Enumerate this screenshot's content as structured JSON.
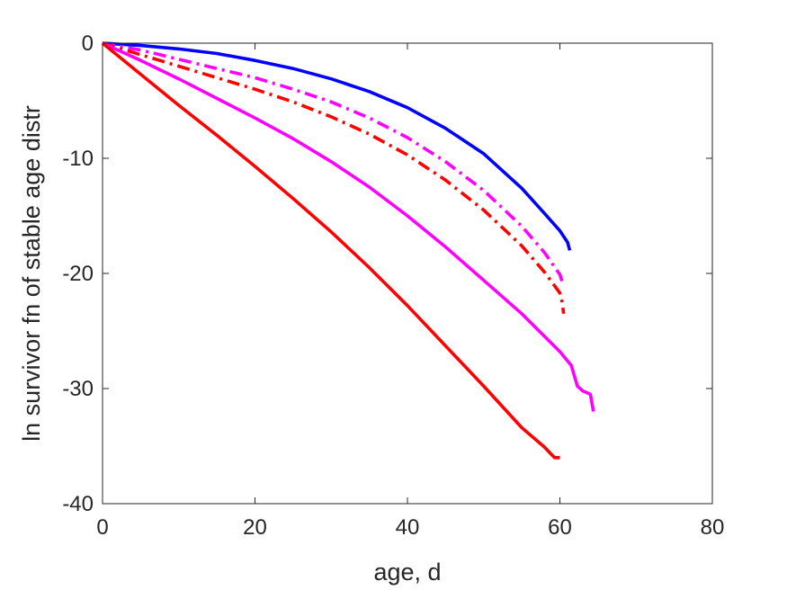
{
  "chart_data": {
    "type": "line",
    "title": "",
    "xlabel": "age, d",
    "ylabel": "ln survivor fn of stable age distr",
    "xlim": [
      0,
      80
    ],
    "ylim": [
      -40,
      0
    ],
    "xticks": [
      0,
      20,
      40,
      60,
      80
    ],
    "yticks": [
      0,
      -10,
      -20,
      -30,
      -40
    ],
    "xtick_labels": [
      "0",
      "20",
      "40",
      "60",
      "80"
    ],
    "ytick_labels": [
      "0",
      "-10",
      "-20",
      "-30",
      "-40"
    ],
    "grid": false,
    "legend": "none",
    "series": [
      {
        "color": "#0000ff",
        "style": "solid",
        "x": [
          0,
          5,
          10,
          15,
          20,
          25,
          30,
          35,
          40,
          45,
          50,
          55,
          58,
          60,
          61,
          61.3
        ],
        "y": [
          0,
          -0.2,
          -0.5,
          -0.9,
          -1.5,
          -2.2,
          -3.1,
          -4.2,
          -5.6,
          -7.4,
          -9.6,
          -12.6,
          -14.8,
          -16.3,
          -17.3,
          -18.0
        ]
      },
      {
        "color": "#ff00ff",
        "style": "dashdot",
        "x": [
          0,
          5,
          10,
          15,
          20,
          25,
          30,
          35,
          40,
          45,
          50,
          55,
          58,
          60,
          60.5
        ],
        "y": [
          0,
          -0.6,
          -1.4,
          -2.2,
          -3.0,
          -4.0,
          -5.1,
          -6.5,
          -8.2,
          -10.3,
          -12.8,
          -15.9,
          -18.2,
          -20.1,
          -21.1
        ]
      },
      {
        "color": "#ff0000",
        "style": "dashdot",
        "x": [
          0,
          5,
          10,
          15,
          20,
          25,
          30,
          35,
          40,
          45,
          50,
          55,
          58,
          60,
          60.3,
          60.5
        ],
        "y": [
          0,
          -1.0,
          -2.0,
          -3.0,
          -4.0,
          -5.1,
          -6.4,
          -7.9,
          -9.7,
          -11.9,
          -14.5,
          -17.6,
          -19.9,
          -21.7,
          -22.5,
          -23.5
        ]
      },
      {
        "color": "#ff00ff",
        "style": "solid",
        "x": [
          0,
          5,
          10,
          15,
          20,
          25,
          30,
          35,
          40,
          45,
          50,
          55,
          60,
          61.5,
          62.3,
          63,
          64,
          64.4
        ],
        "y": [
          0,
          -1.5,
          -3.1,
          -4.8,
          -6.5,
          -8.3,
          -10.3,
          -12.5,
          -15.0,
          -17.7,
          -20.6,
          -23.5,
          -26.8,
          -28.0,
          -29.8,
          -30.2,
          -30.5,
          -32.0
        ]
      },
      {
        "color": "#ff0000",
        "style": "solid",
        "x": [
          0,
          5,
          10,
          15,
          20,
          25,
          30,
          35,
          40,
          45,
          50,
          55,
          58,
          59,
          59.3,
          60
        ],
        "y": [
          0,
          -2.7,
          -5.4,
          -8.0,
          -10.7,
          -13.5,
          -16.4,
          -19.5,
          -22.8,
          -26.3,
          -29.8,
          -33.4,
          -35.1,
          -35.8,
          -36.0,
          -36.0
        ]
      }
    ]
  }
}
